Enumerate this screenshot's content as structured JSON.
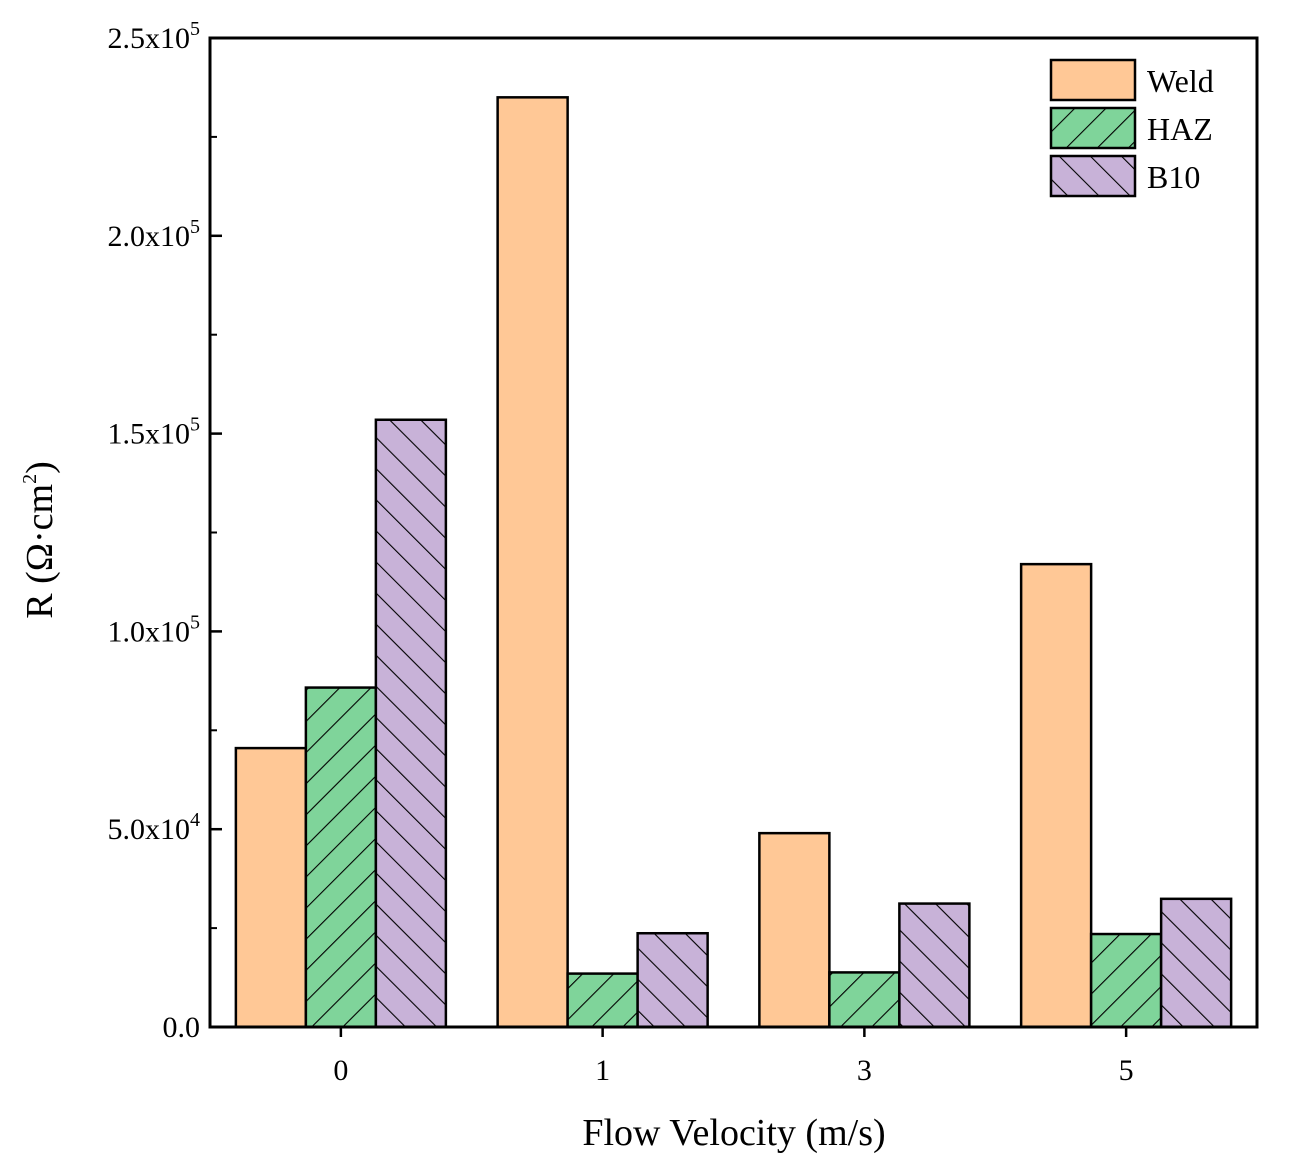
{
  "chart_data": {
    "type": "bar",
    "title": "",
    "xlabel": "Flow Velocity (m/s)",
    "ylabel": {
      "prefix": "R (Ω·cm",
      "sup": "2",
      "suffix": ")"
    },
    "categories": [
      "0",
      "1",
      "3",
      "5"
    ],
    "series": [
      {
        "name": "Weld",
        "color": "#ffc896",
        "pattern": "none",
        "values": [
          70500,
          235000,
          49000,
          117000
        ]
      },
      {
        "name": "HAZ",
        "color": "#7fd49a",
        "pattern": "forward-hatch",
        "values": [
          85800,
          13500,
          13800,
          23500
        ]
      },
      {
        "name": "B10",
        "color": "#c8b2d8",
        "pattern": "back-hatch",
        "values": [
          153500,
          23700,
          31200,
          32400
        ]
      }
    ],
    "ylim": [
      0,
      250000
    ],
    "y_ticks": [
      {
        "value": 0,
        "mantissa": "0.0",
        "exp": ""
      },
      {
        "value": 50000,
        "mantissa": "5.0x10",
        "exp": "4"
      },
      {
        "value": 100000,
        "mantissa": "1.0x10",
        "exp": "5"
      },
      {
        "value": 150000,
        "mantissa": "1.5x10",
        "exp": "5"
      },
      {
        "value": 200000,
        "mantissa": "2.0x10",
        "exp": "5"
      },
      {
        "value": 250000,
        "mantissa": "2.5x10",
        "exp": "5"
      }
    ],
    "y_minor_step": 25000,
    "legend": "top-right",
    "grid": false
  }
}
